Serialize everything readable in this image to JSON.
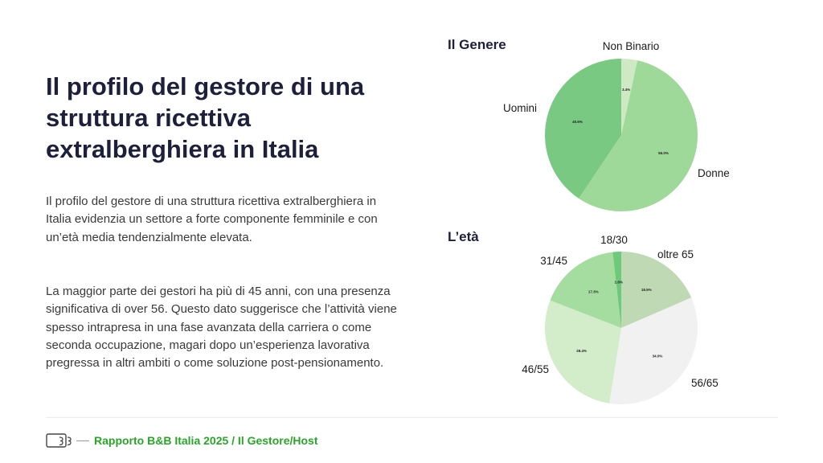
{
  "title": "Il profilo del gestore di una struttura ricettiva extralberghiera in Italia",
  "paragraphs": [
    "Il profilo del gestore di una struttura ricettiva extralberghiera in Italia evidenzia un settore a forte componente femminile e con un’età media tendenzialmente elevata.",
    "La maggior parte dei gestori ha più di 45 anni, con una presenza significativa di over 56. Questo dato suggerisce che l’attività viene spesso intrapresa in una fase avanzata della carriera o come seconda occupazione, magari dopo un’esperienza lavorativa pregressa in altri ambiti o come soluzione post-pensionamento."
  ],
  "footer": {
    "logo_icon": "report-logo-icon",
    "text": "Rapporto B&B Italia 2025 / Il Gestore/Host",
    "color": "#2aa52a"
  },
  "chart_data": [
    {
      "type": "pie",
      "title": "Il Genere",
      "start": "top",
      "direction": "clockwise",
      "categories": [
        "Non Binario",
        "Donne",
        "Uomini"
      ],
      "values": [
        3.4,
        56.0,
        40.6
      ],
      "data_labels": [
        "3.4%",
        "56.0%",
        "40.6%"
      ],
      "colors": [
        "#cfe9c5",
        "#9fd99a",
        "#79c983"
      ]
    },
    {
      "type": "pie",
      "title": "L’età",
      "start": "top",
      "direction": "clockwise",
      "categories": [
        "oltre 65",
        "56/65",
        "46/55",
        "31/45",
        "18/30"
      ],
      "values": [
        18.5,
        34.0,
        28.4,
        17.3,
        1.8
      ],
      "data_labels": [
        "18.5%",
        "34.0%",
        "28.4%",
        "17.3%",
        "1.8%"
      ],
      "colors": [
        "#bed9b4",
        "#f1f1f1",
        "#d3ecc9",
        "#a5dc9f",
        "#6ec97b"
      ]
    }
  ]
}
